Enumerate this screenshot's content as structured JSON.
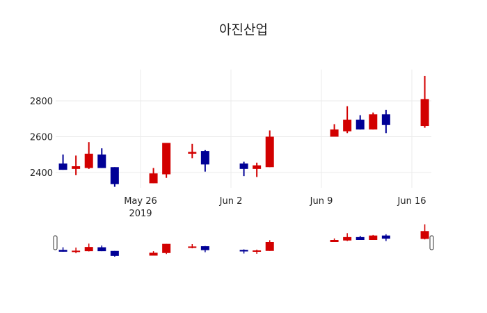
{
  "chart_data": {
    "type": "candlestick",
    "title": "아진산업",
    "xlabel": "",
    "ylabel": "",
    "ylim": [
      2285,
      2955
    ],
    "x_tick_labels": [
      "May 26\n2019",
      "Jun 2",
      "Jun 9",
      "Jun 16"
    ],
    "y_tick_labels": [
      "2400",
      "2600",
      "2800"
    ],
    "increasing_color": "#d20000",
    "decreasing_color": "#000096",
    "grid": true,
    "range_slider": true,
    "candles": [
      {
        "date": "2019-05-20",
        "open": 2450,
        "high": 2500,
        "low": 2415,
        "close": 2415
      },
      {
        "date": "2019-05-21",
        "open": 2420,
        "high": 2495,
        "low": 2385,
        "close": 2435
      },
      {
        "date": "2019-05-22",
        "open": 2425,
        "high": 2570,
        "low": 2420,
        "close": 2505
      },
      {
        "date": "2019-05-23",
        "open": 2500,
        "high": 2535,
        "low": 2425,
        "close": 2425
      },
      {
        "date": "2019-05-24",
        "open": 2430,
        "high": 2430,
        "low": 2320,
        "close": 2335
      },
      {
        "date": "2019-05-27",
        "open": 2340,
        "high": 2425,
        "low": 2340,
        "close": 2395
      },
      {
        "date": "2019-05-28",
        "open": 2390,
        "high": 2565,
        "low": 2370,
        "close": 2565
      },
      {
        "date": "2019-05-30",
        "open": 2505,
        "high": 2560,
        "low": 2480,
        "close": 2515
      },
      {
        "date": "2019-05-31",
        "open": 2520,
        "high": 2525,
        "low": 2405,
        "close": 2445
      },
      {
        "date": "2019-06-03",
        "open": 2450,
        "high": 2460,
        "low": 2380,
        "close": 2420
      },
      {
        "date": "2019-06-04",
        "open": 2420,
        "high": 2455,
        "low": 2375,
        "close": 2440
      },
      {
        "date": "2019-06-05",
        "open": 2430,
        "high": 2635,
        "low": 2430,
        "close": 2600
      },
      {
        "date": "2019-06-10",
        "open": 2600,
        "high": 2670,
        "low": 2600,
        "close": 2640
      },
      {
        "date": "2019-06-11",
        "open": 2630,
        "high": 2770,
        "low": 2620,
        "close": 2695
      },
      {
        "date": "2019-06-12",
        "open": 2695,
        "high": 2720,
        "low": 2640,
        "close": 2640
      },
      {
        "date": "2019-06-13",
        "open": 2640,
        "high": 2735,
        "low": 2640,
        "close": 2725
      },
      {
        "date": "2019-06-14",
        "open": 2725,
        "high": 2750,
        "low": 2620,
        "close": 2665
      },
      {
        "date": "2019-06-17",
        "open": 2660,
        "high": 2940,
        "low": 2650,
        "close": 2810
      }
    ]
  }
}
